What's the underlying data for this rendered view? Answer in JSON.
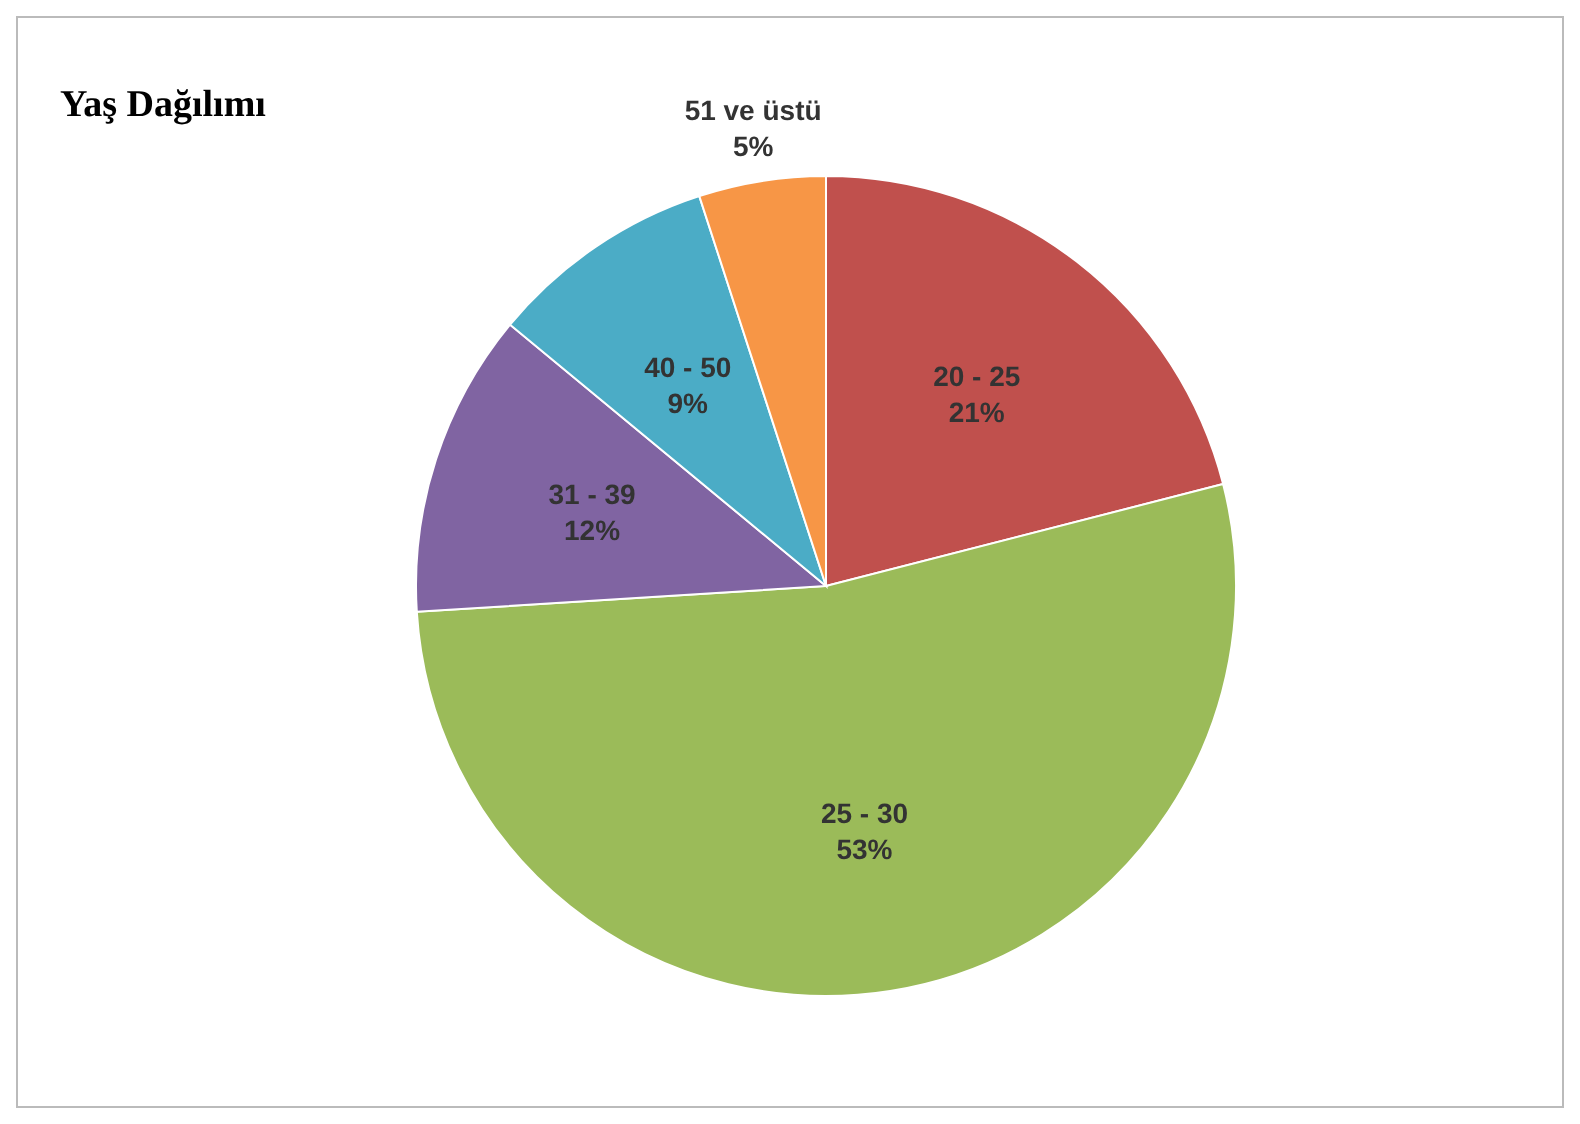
{
  "chart_data": {
    "type": "pie",
    "title": "Yaş Dağılımı",
    "categories": [
      "20 - 25",
      "25 - 30",
      "31 - 39",
      "40 - 50",
      "51 ve üstü"
    ],
    "values": [
      21,
      53,
      12,
      9,
      5
    ],
    "colors": [
      "#c0504d",
      "#9bbb59",
      "#8064a2",
      "#4bacc6",
      "#f79646"
    ],
    "value_labels": [
      "21%",
      "53%",
      "12%",
      "9%",
      "5%"
    ],
    "legend": false
  }
}
